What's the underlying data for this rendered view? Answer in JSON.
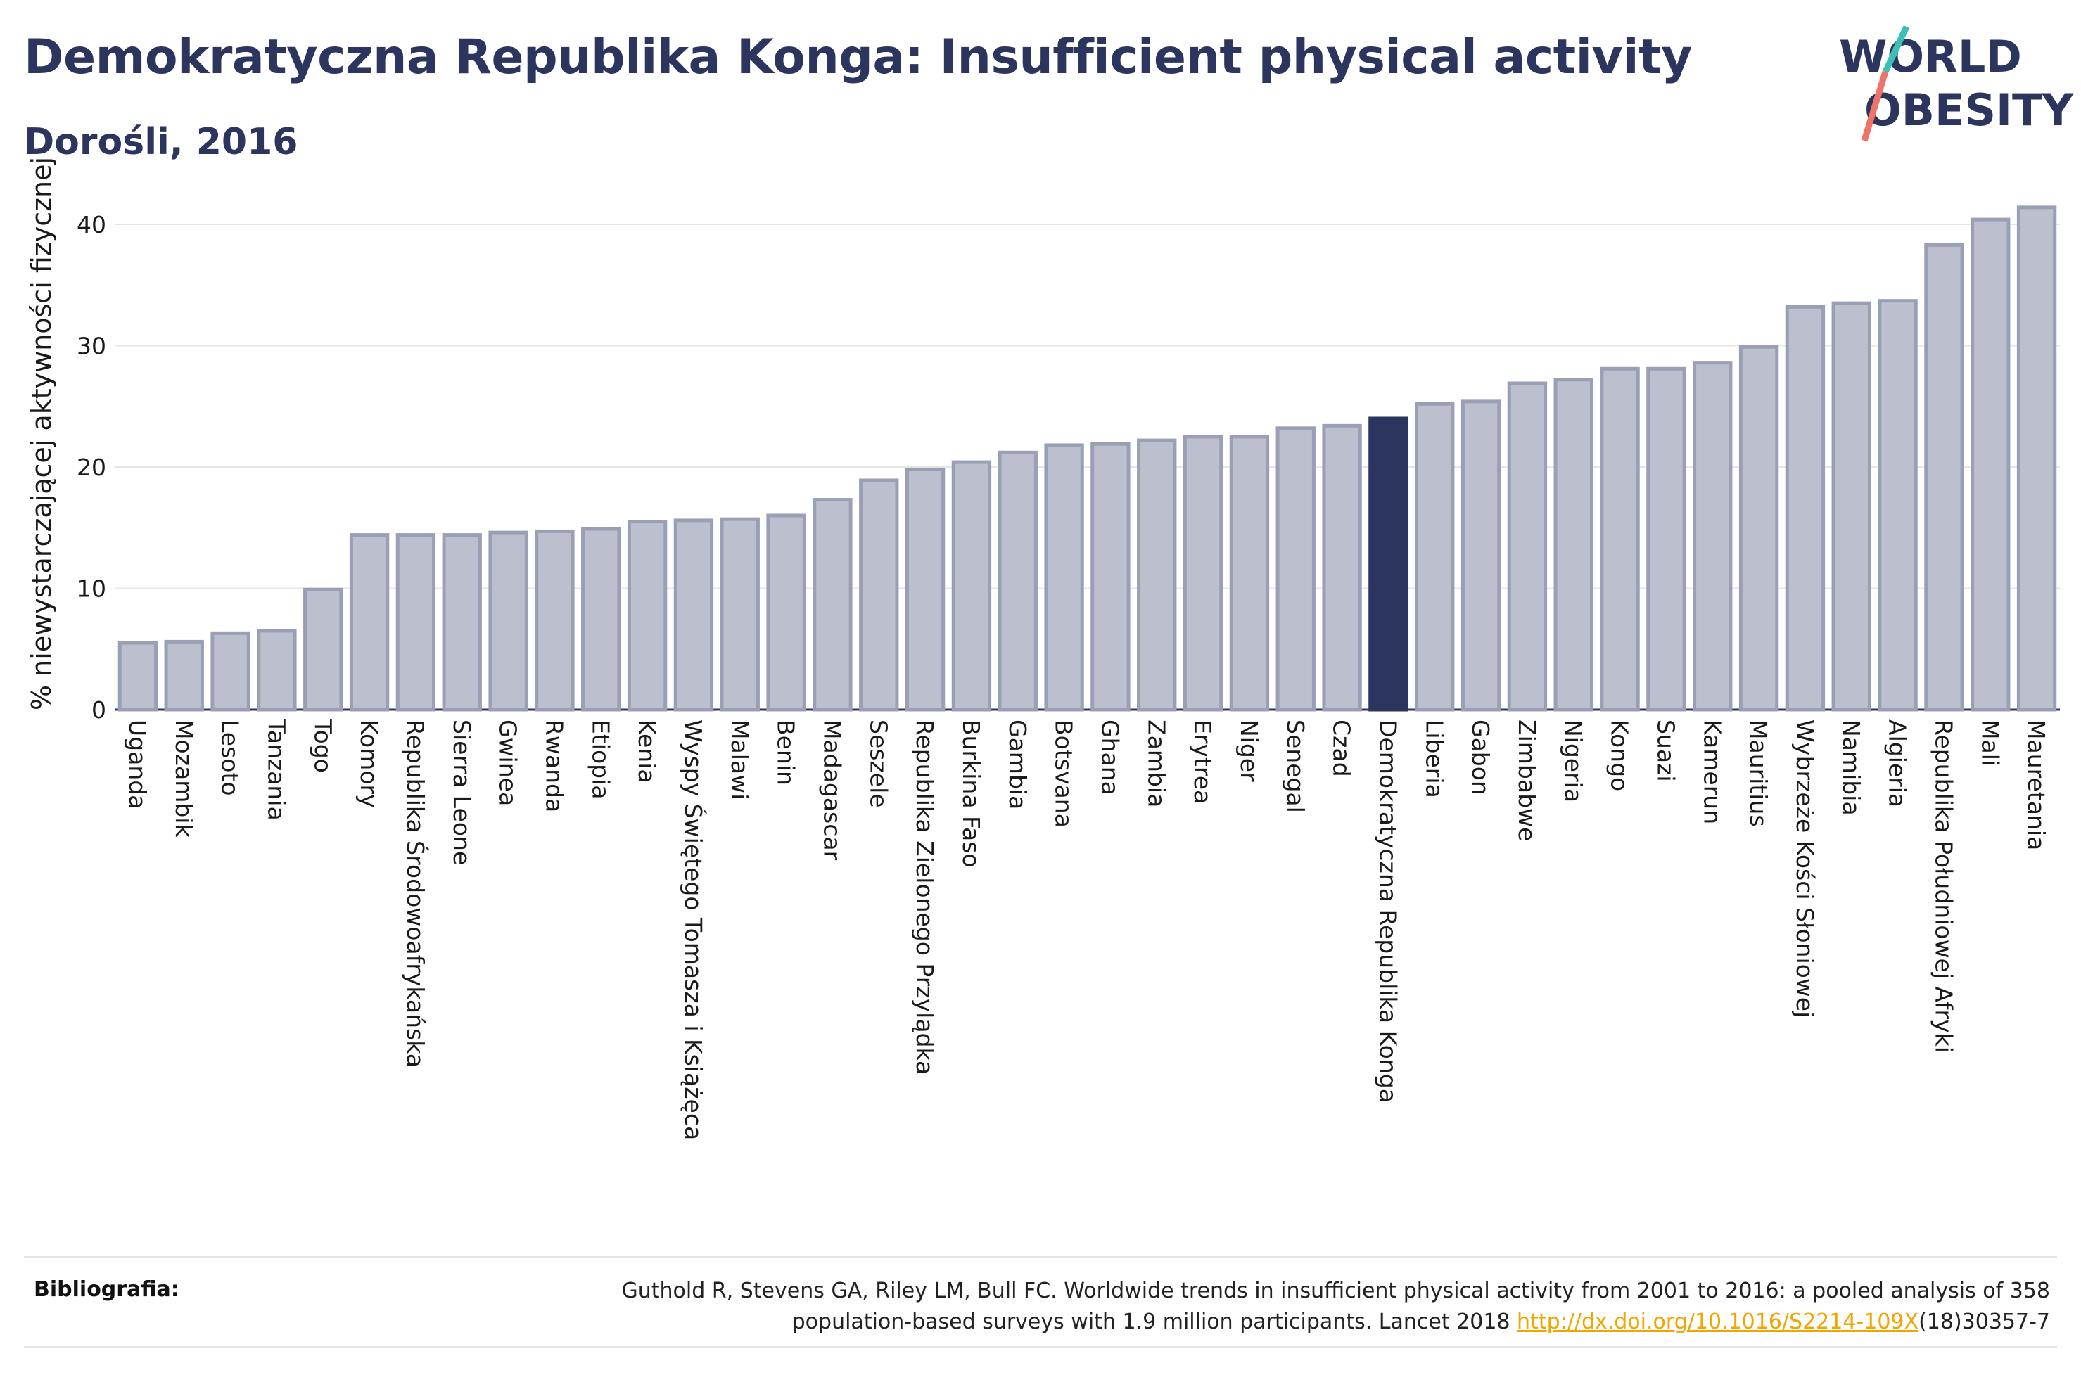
{
  "title": "Demokratyczna Republika Konga: Insufficient physical activity",
  "subtitle": "Dorośli, 2016",
  "logo": {
    "line1": "WORLD",
    "line2": "OBESITY",
    "slash_colors": [
      "#3cbfb4",
      "#f0736a"
    ]
  },
  "colors": {
    "highlight": "#2c355e",
    "bar_fill": "#bcc0ce",
    "bar_stroke": "#9a9fb5",
    "grid": "#e6e6e6",
    "text_dark": "#2c355e"
  },
  "footer": {
    "bibliography_label": "Bibliografia:",
    "citation_part1": "Guthold R, Stevens GA, Riley LM, Bull FC. Worldwide trends in insufficient physical activity from 2001 to 2016: a pooled analysis of 358 population-based surveys with 1.9 million participants. Lancet 2018 ",
    "citation_link": "http://dx.doi.org/10.1016/S2214-109X",
    "citation_part2": "(18)30357-7"
  },
  "chart_data": {
    "type": "bar",
    "title": "Demokratyczna Republika Konga: Insufficient physical activity",
    "subtitle": "Dorośli, 2016",
    "xlabel": "",
    "ylabel": "% niewystarczającej aktywności fizycznej",
    "ylim": [
      0,
      44
    ],
    "yticks": [
      0,
      10,
      20,
      30,
      40
    ],
    "grid": true,
    "highlight_category": "Demokratyczna Republika Konga",
    "categories": [
      "Uganda",
      "Mozambik",
      "Lesoto",
      "Tanzania",
      "Togo",
      "Komory",
      "Republika Środowoafrykańska",
      "Sierra Leone",
      "Gwinea",
      "Rwanda",
      "Etiopia",
      "Kenia",
      "Wyspy Świętego Tomasza i Książęca",
      "Malawi",
      "Benin",
      "Madagascar",
      "Seszele",
      "Republika Zielonego Przylądka",
      "Burkina Faso",
      "Gambia",
      "Botsvana",
      "Ghana",
      "Zambia",
      "Erytrea",
      "Niger",
      "Senegal",
      "Czad",
      "Demokratyczna Republika Konga",
      "Liberia",
      "Gabon",
      "Zimbabwe",
      "Nigeria",
      "Kongo",
      "Suazi",
      "Kamerun",
      "Mauritius",
      "Wybrzeże Kości Słoniowej",
      "Namibia",
      "Algieria",
      "Republika Południowej Afryki",
      "Mali",
      "Mauretania"
    ],
    "values": [
      5.5,
      5.6,
      6.3,
      6.5,
      9.9,
      14.4,
      14.4,
      14.4,
      14.6,
      14.7,
      14.9,
      15.5,
      15.6,
      15.7,
      16.0,
      17.3,
      18.9,
      19.8,
      20.4,
      21.2,
      21.8,
      21.9,
      22.2,
      22.5,
      22.5,
      23.2,
      23.4,
      24.0,
      25.2,
      25.4,
      26.9,
      27.2,
      28.1,
      28.1,
      28.6,
      29.9,
      33.2,
      33.5,
      33.7,
      38.3,
      40.4,
      41.4
    ]
  }
}
